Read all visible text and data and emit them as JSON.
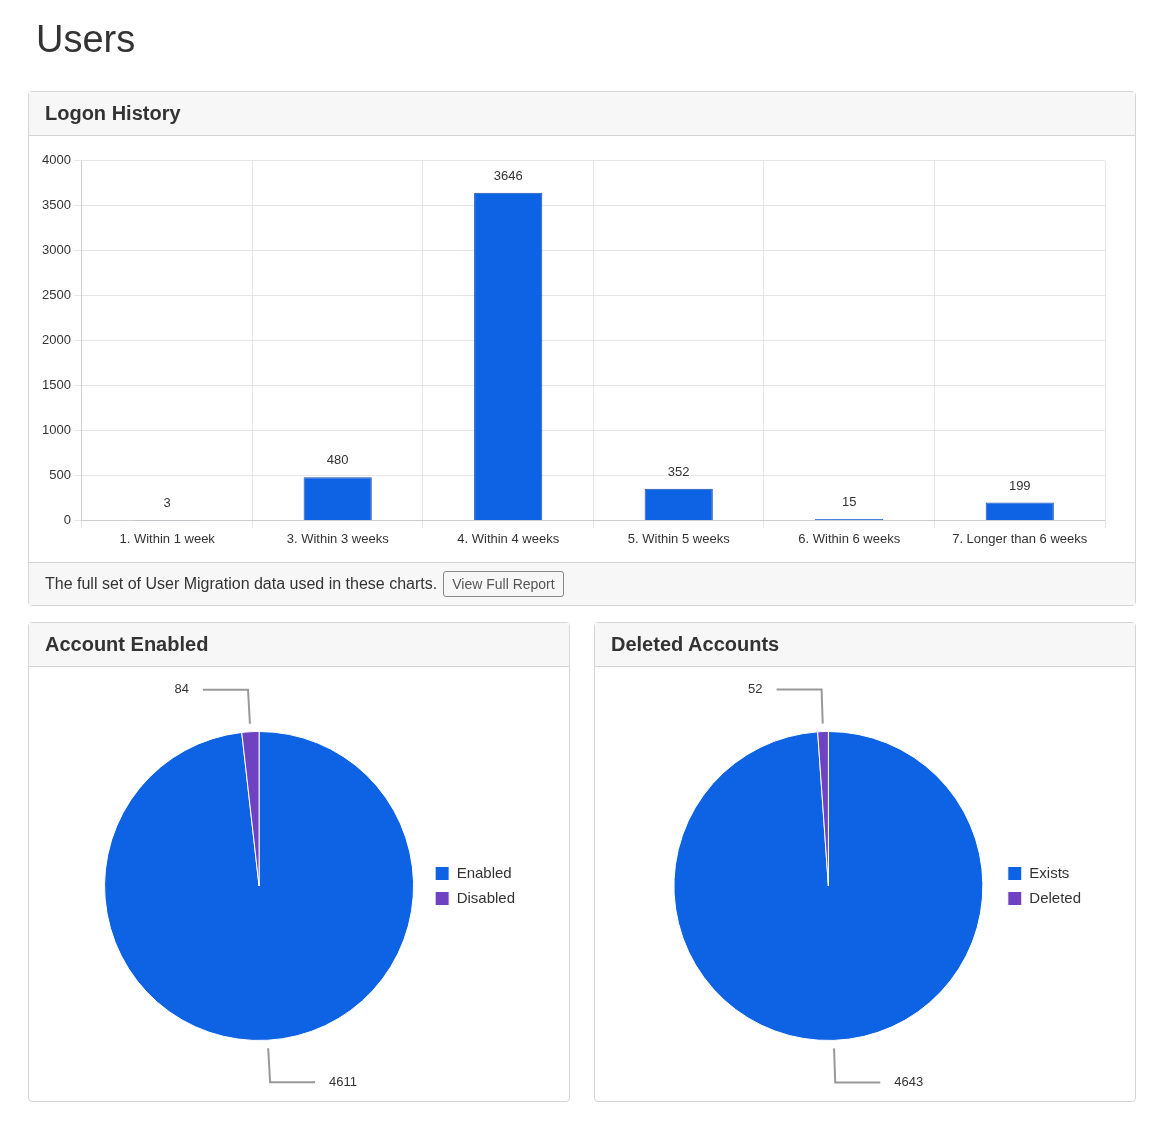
{
  "chart_data": [
    {
      "type": "bar",
      "title": "Logon History",
      "categories": [
        "1. Within 1 week",
        "3. Within 3 weeks",
        "4. Within 4 weeks",
        "5. Within 5 weeks",
        "6. Within 6 weeks",
        "7. Longer than 6 weeks"
      ],
      "values": [
        3,
        480,
        3646,
        352,
        15,
        199
      ],
      "color": "#0d63e3",
      "ylim": [
        0,
        4000
      ],
      "yticks": [
        0,
        500,
        1000,
        1500,
        2000,
        2500,
        3000,
        3500,
        4000
      ],
      "grid": true,
      "legend": false,
      "data_labels": true,
      "annotations": [
        "Users",
        "The full set of User Migration data used in these charts.",
        "View Full Report"
      ]
    },
    {
      "type": "pie",
      "title": "Account Enabled",
      "categories": [
        "Enabled",
        "Disabled"
      ],
      "values": [
        4611,
        84
      ],
      "colors": [
        "#0d63e3",
        "#6f42c1"
      ],
      "legend": "right",
      "data_labels": true
    },
    {
      "type": "pie",
      "title": "Deleted Accounts",
      "categories": [
        "Exists",
        "Deleted"
      ],
      "values": [
        4643,
        52
      ],
      "colors": [
        "#0d63e3",
        "#6f42c1"
      ],
      "legend": "right",
      "data_labels": true
    }
  ]
}
